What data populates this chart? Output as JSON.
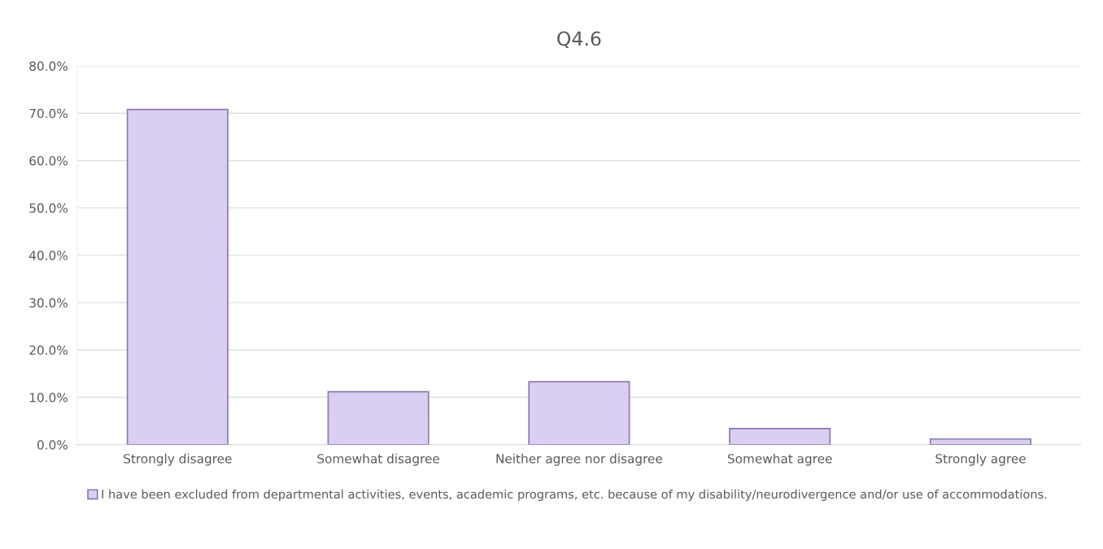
{
  "chart_data": {
    "type": "bar",
    "title": "Q4.6",
    "categories": [
      "Strongly disagree",
      "Somewhat disagree",
      "Neither agree nor disagree",
      "Somewhat agree",
      "Strongly agree"
    ],
    "series": [
      {
        "name": "I have been excluded from departmental activities, events, academic programs, etc. because of my disability/neurodivergence and/or use of accommodations.",
        "color": "#dacff0",
        "values": [
          70.8,
          11.2,
          13.3,
          3.4,
          1.2
        ]
      }
    ],
    "ylim": [
      0,
      80
    ],
    "yticks": [
      {
        "value": 0,
        "label": "0.0%"
      },
      {
        "value": 10,
        "label": "10.0%"
      },
      {
        "value": 20,
        "label": "20.0%"
      },
      {
        "value": 30,
        "label": "30.0%"
      },
      {
        "value": 40,
        "label": "40.0%"
      },
      {
        "value": 50,
        "label": "50.0%"
      },
      {
        "value": 60,
        "label": "60.0%"
      },
      {
        "value": 70,
        "label": "70.0%"
      },
      {
        "value": 80,
        "label": "80.0%"
      }
    ],
    "grid": "y",
    "legend": "bottom"
  }
}
